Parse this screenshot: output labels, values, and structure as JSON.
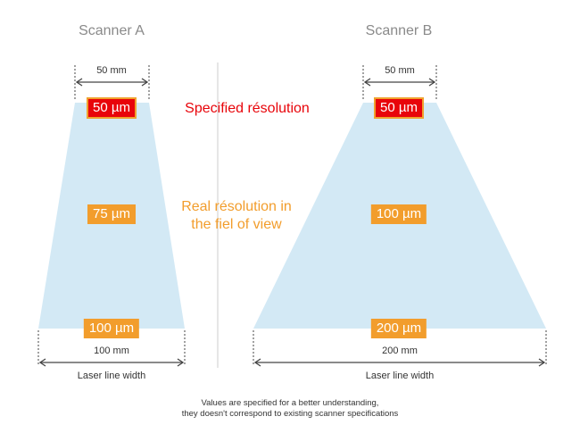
{
  "scanner_a": {
    "title": "Scanner A",
    "top_width": "50 mm",
    "bottom_width": "100 mm",
    "laser_caption": "Laser line width",
    "res_top": "50 µm",
    "res_mid": "75 µm",
    "res_bottom": "100 µm"
  },
  "scanner_b": {
    "title": "Scanner B",
    "top_width": "50 mm",
    "bottom_width": "200 mm",
    "laser_caption": "Laser line width",
    "res_top": "50 µm",
    "res_mid": "100 µm",
    "res_bottom": "200 µm"
  },
  "labels": {
    "specified": "Specified résolution",
    "real_line1": "Real résolution in",
    "real_line2": "the fiel of view"
  },
  "footnote": {
    "line1": "Values are specified for a better understanding,",
    "line2": "they doesn't correspond to existing scanner specifications"
  },
  "colors": {
    "field_of_view": "#d3e9f5",
    "specified": "#e8040a",
    "real": "#f29d2c",
    "divider": "#cccccc",
    "arrows": "#444444"
  }
}
